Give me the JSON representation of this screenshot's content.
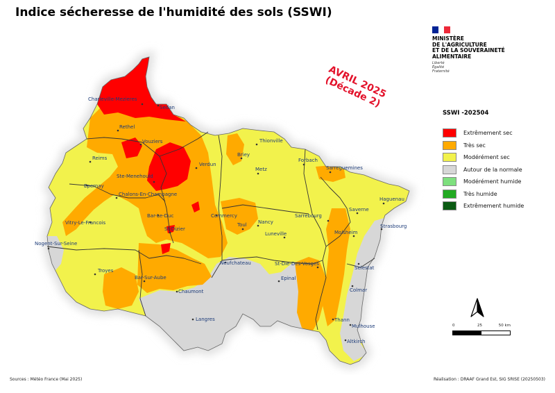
{
  "title": "Indice sécheresse de l'humidité des sols (SSWI)",
  "date_stamp": {
    "line1": "AVRIL 2025",
    "line2": "(Décade 2)"
  },
  "ministry": {
    "flag_colors": [
      "#002395",
      "#ffffff",
      "#ed2939"
    ],
    "name_lines": [
      "MINISTÈRE",
      "DE L'AGRICULTURE",
      "ET DE LA SOUVERAINETÉ",
      "ALIMENTAIRE"
    ],
    "motto_lines": [
      "Liberté",
      "Égalité",
      "Fraternité"
    ]
  },
  "legend": {
    "title": "SSWI -202504",
    "items": [
      {
        "label": "Extrêmement sec",
        "color": "#ff0000"
      },
      {
        "label": "Très sec",
        "color": "#ffaa00"
      },
      {
        "label": "Modérément sec",
        "color": "#f2f24c"
      },
      {
        "label": "Autour de la normale",
        "color": "#d7d7d7"
      },
      {
        "label": "Modérément humide",
        "color": "#7ee07e"
      },
      {
        "label": "Très humide",
        "color": "#22aa22"
      },
      {
        "label": "Extrêmement humide",
        "color": "#0a5a12"
      }
    ]
  },
  "map_colors": {
    "extreme_dry": "#ff0000",
    "very_dry": "#ffaa00",
    "moderate_dry": "#f2f24c",
    "normal": "#d7d7d7",
    "halo": "#e0e0e0"
  },
  "scale": {
    "ticks": [
      "0",
      "25",
      "50 km"
    ]
  },
  "north_arrow": "north-arrow-icon",
  "cities": [
    {
      "name": "Charleville-Mezieres"
    },
    {
      "name": "Sedan"
    },
    {
      "name": "Rethel"
    },
    {
      "name": "Vouziers"
    },
    {
      "name": "Reims"
    },
    {
      "name": "Ste-Menehould"
    },
    {
      "name": "Epernay"
    },
    {
      "name": "Verdun"
    },
    {
      "name": "Chalons-En-Champagne"
    },
    {
      "name": "Thionville"
    },
    {
      "name": "Briey"
    },
    {
      "name": "Metz"
    },
    {
      "name": "Forbach"
    },
    {
      "name": "Sarreguemines"
    },
    {
      "name": "Haguenau"
    },
    {
      "name": "Saverne"
    },
    {
      "name": "Sarrebourg"
    },
    {
      "name": "Commercy"
    },
    {
      "name": "Bar-Le-Duc"
    },
    {
      "name": "Toul"
    },
    {
      "name": "Nancy"
    },
    {
      "name": "Vitry-Le-Francois"
    },
    {
      "name": "St-Dizier"
    },
    {
      "name": "Luneville"
    },
    {
      "name": "Strasbourg"
    },
    {
      "name": "Molsheim"
    },
    {
      "name": "Nogent-Sur-Seine"
    },
    {
      "name": "Neufchateau"
    },
    {
      "name": "St-Die-Des-Vosges"
    },
    {
      "name": "Selestat"
    },
    {
      "name": "Troyes"
    },
    {
      "name": "Bar-Sur-Aube"
    },
    {
      "name": "Epinal"
    },
    {
      "name": "Chaumont"
    },
    {
      "name": "Colmar"
    },
    {
      "name": "Langres"
    },
    {
      "name": "Thann"
    },
    {
      "name": "Mulhouse"
    },
    {
      "name": "Altkirch"
    }
  ],
  "sources": "Sources : Météo France (Mai 2025)",
  "credits": "Réalisation : DRAAF Grand Est, SIG SRISE (20250503)"
}
